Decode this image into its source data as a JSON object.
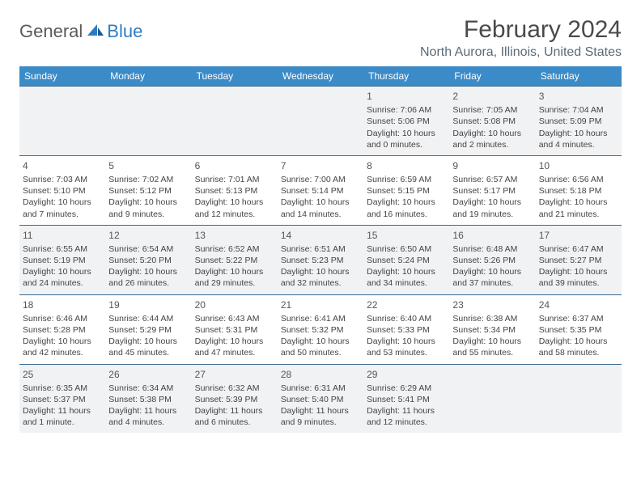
{
  "logo": {
    "part1": "General",
    "part2": "Blue"
  },
  "title": "February 2024",
  "location": "North Aurora, Illinois, United States",
  "colors": {
    "header_bg": "#3b8bc9",
    "header_fg": "#ffffff",
    "row_alt_bg": "#f1f2f3",
    "border": "#3b6a8f",
    "logo_blue": "#2e7cc0",
    "text_gray": "#5a5a5a"
  },
  "day_headers": [
    "Sunday",
    "Monday",
    "Tuesday",
    "Wednesday",
    "Thursday",
    "Friday",
    "Saturday"
  ],
  "weeks": [
    [
      null,
      null,
      null,
      null,
      {
        "n": "1",
        "sr": "Sunrise: 7:06 AM",
        "ss": "Sunset: 5:06 PM",
        "d1": "Daylight: 10 hours",
        "d2": "and 0 minutes."
      },
      {
        "n": "2",
        "sr": "Sunrise: 7:05 AM",
        "ss": "Sunset: 5:08 PM",
        "d1": "Daylight: 10 hours",
        "d2": "and 2 minutes."
      },
      {
        "n": "3",
        "sr": "Sunrise: 7:04 AM",
        "ss": "Sunset: 5:09 PM",
        "d1": "Daylight: 10 hours",
        "d2": "and 4 minutes."
      }
    ],
    [
      {
        "n": "4",
        "sr": "Sunrise: 7:03 AM",
        "ss": "Sunset: 5:10 PM",
        "d1": "Daylight: 10 hours",
        "d2": "and 7 minutes."
      },
      {
        "n": "5",
        "sr": "Sunrise: 7:02 AM",
        "ss": "Sunset: 5:12 PM",
        "d1": "Daylight: 10 hours",
        "d2": "and 9 minutes."
      },
      {
        "n": "6",
        "sr": "Sunrise: 7:01 AM",
        "ss": "Sunset: 5:13 PM",
        "d1": "Daylight: 10 hours",
        "d2": "and 12 minutes."
      },
      {
        "n": "7",
        "sr": "Sunrise: 7:00 AM",
        "ss": "Sunset: 5:14 PM",
        "d1": "Daylight: 10 hours",
        "d2": "and 14 minutes."
      },
      {
        "n": "8",
        "sr": "Sunrise: 6:59 AM",
        "ss": "Sunset: 5:15 PM",
        "d1": "Daylight: 10 hours",
        "d2": "and 16 minutes."
      },
      {
        "n": "9",
        "sr": "Sunrise: 6:57 AM",
        "ss": "Sunset: 5:17 PM",
        "d1": "Daylight: 10 hours",
        "d2": "and 19 minutes."
      },
      {
        "n": "10",
        "sr": "Sunrise: 6:56 AM",
        "ss": "Sunset: 5:18 PM",
        "d1": "Daylight: 10 hours",
        "d2": "and 21 minutes."
      }
    ],
    [
      {
        "n": "11",
        "sr": "Sunrise: 6:55 AM",
        "ss": "Sunset: 5:19 PM",
        "d1": "Daylight: 10 hours",
        "d2": "and 24 minutes."
      },
      {
        "n": "12",
        "sr": "Sunrise: 6:54 AM",
        "ss": "Sunset: 5:20 PM",
        "d1": "Daylight: 10 hours",
        "d2": "and 26 minutes."
      },
      {
        "n": "13",
        "sr": "Sunrise: 6:52 AM",
        "ss": "Sunset: 5:22 PM",
        "d1": "Daylight: 10 hours",
        "d2": "and 29 minutes."
      },
      {
        "n": "14",
        "sr": "Sunrise: 6:51 AM",
        "ss": "Sunset: 5:23 PM",
        "d1": "Daylight: 10 hours",
        "d2": "and 32 minutes."
      },
      {
        "n": "15",
        "sr": "Sunrise: 6:50 AM",
        "ss": "Sunset: 5:24 PM",
        "d1": "Daylight: 10 hours",
        "d2": "and 34 minutes."
      },
      {
        "n": "16",
        "sr": "Sunrise: 6:48 AM",
        "ss": "Sunset: 5:26 PM",
        "d1": "Daylight: 10 hours",
        "d2": "and 37 minutes."
      },
      {
        "n": "17",
        "sr": "Sunrise: 6:47 AM",
        "ss": "Sunset: 5:27 PM",
        "d1": "Daylight: 10 hours",
        "d2": "and 39 minutes."
      }
    ],
    [
      {
        "n": "18",
        "sr": "Sunrise: 6:46 AM",
        "ss": "Sunset: 5:28 PM",
        "d1": "Daylight: 10 hours",
        "d2": "and 42 minutes."
      },
      {
        "n": "19",
        "sr": "Sunrise: 6:44 AM",
        "ss": "Sunset: 5:29 PM",
        "d1": "Daylight: 10 hours",
        "d2": "and 45 minutes."
      },
      {
        "n": "20",
        "sr": "Sunrise: 6:43 AM",
        "ss": "Sunset: 5:31 PM",
        "d1": "Daylight: 10 hours",
        "d2": "and 47 minutes."
      },
      {
        "n": "21",
        "sr": "Sunrise: 6:41 AM",
        "ss": "Sunset: 5:32 PM",
        "d1": "Daylight: 10 hours",
        "d2": "and 50 minutes."
      },
      {
        "n": "22",
        "sr": "Sunrise: 6:40 AM",
        "ss": "Sunset: 5:33 PM",
        "d1": "Daylight: 10 hours",
        "d2": "and 53 minutes."
      },
      {
        "n": "23",
        "sr": "Sunrise: 6:38 AM",
        "ss": "Sunset: 5:34 PM",
        "d1": "Daylight: 10 hours",
        "d2": "and 55 minutes."
      },
      {
        "n": "24",
        "sr": "Sunrise: 6:37 AM",
        "ss": "Sunset: 5:35 PM",
        "d1": "Daylight: 10 hours",
        "d2": "and 58 minutes."
      }
    ],
    [
      {
        "n": "25",
        "sr": "Sunrise: 6:35 AM",
        "ss": "Sunset: 5:37 PM",
        "d1": "Daylight: 11 hours",
        "d2": "and 1 minute."
      },
      {
        "n": "26",
        "sr": "Sunrise: 6:34 AM",
        "ss": "Sunset: 5:38 PM",
        "d1": "Daylight: 11 hours",
        "d2": "and 4 minutes."
      },
      {
        "n": "27",
        "sr": "Sunrise: 6:32 AM",
        "ss": "Sunset: 5:39 PM",
        "d1": "Daylight: 11 hours",
        "d2": "and 6 minutes."
      },
      {
        "n": "28",
        "sr": "Sunrise: 6:31 AM",
        "ss": "Sunset: 5:40 PM",
        "d1": "Daylight: 11 hours",
        "d2": "and 9 minutes."
      },
      {
        "n": "29",
        "sr": "Sunrise: 6:29 AM",
        "ss": "Sunset: 5:41 PM",
        "d1": "Daylight: 11 hours",
        "d2": "and 12 minutes."
      },
      null,
      null
    ]
  ]
}
